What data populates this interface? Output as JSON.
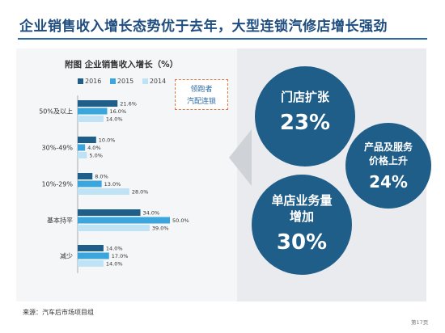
{
  "slide": {
    "title": "企业销售收入增长态势优于去年，大型连锁汽修店增长强劲",
    "source": "来源：汽车后市场项目组",
    "page_no": "第17页"
  },
  "tag": {
    "line1": "领跑者",
    "line2": "汽配连锁"
  },
  "bubbles": [
    {
      "label_lines": [
        "门店扩张"
      ],
      "value": "23%"
    },
    {
      "label_lines": [
        "产品及服务",
        "价格上升"
      ],
      "value": "24%"
    },
    {
      "label_lines": [
        "单店业务量",
        "增加"
      ],
      "value": "30%"
    }
  ],
  "colors": {
    "s2016": "#1f5e89",
    "s2015": "#3aa6dd",
    "s2014": "#bfe2f4",
    "title": "#1f4d80",
    "bubble": "#1f5e89",
    "tag_border": "#e07a3e"
  },
  "chart_data": {
    "type": "bar",
    "orientation": "horizontal",
    "title": "附图  企业销售收入增长（%）",
    "categories": [
      "50%及以上",
      "30%-49%",
      "10%-29%",
      "基本持平",
      "减少"
    ],
    "series": [
      {
        "name": "2016",
        "values": [
          21.6,
          10.0,
          8.0,
          34.0,
          14.0
        ]
      },
      {
        "name": "2015",
        "values": [
          16.0,
          4.0,
          13.0,
          50.0,
          17.0
        ]
      },
      {
        "name": "2014",
        "values": [
          14.0,
          5.0,
          28.0,
          39.0,
          14.0
        ]
      }
    ],
    "value_labels": [
      [
        "21.6%",
        "16.0%",
        "14.0%"
      ],
      [
        "10.0%",
        "4.0%",
        "5.0%"
      ],
      [
        "8.0%",
        "13.0%",
        "28.0%"
      ],
      [
        "34.0%",
        "50.0%",
        "39.0%"
      ],
      [
        "14.0%",
        "17.0%",
        "14.0%"
      ]
    ],
    "legend_position": "top-left",
    "xlim": [
      0,
      50
    ],
    "grid": false
  }
}
